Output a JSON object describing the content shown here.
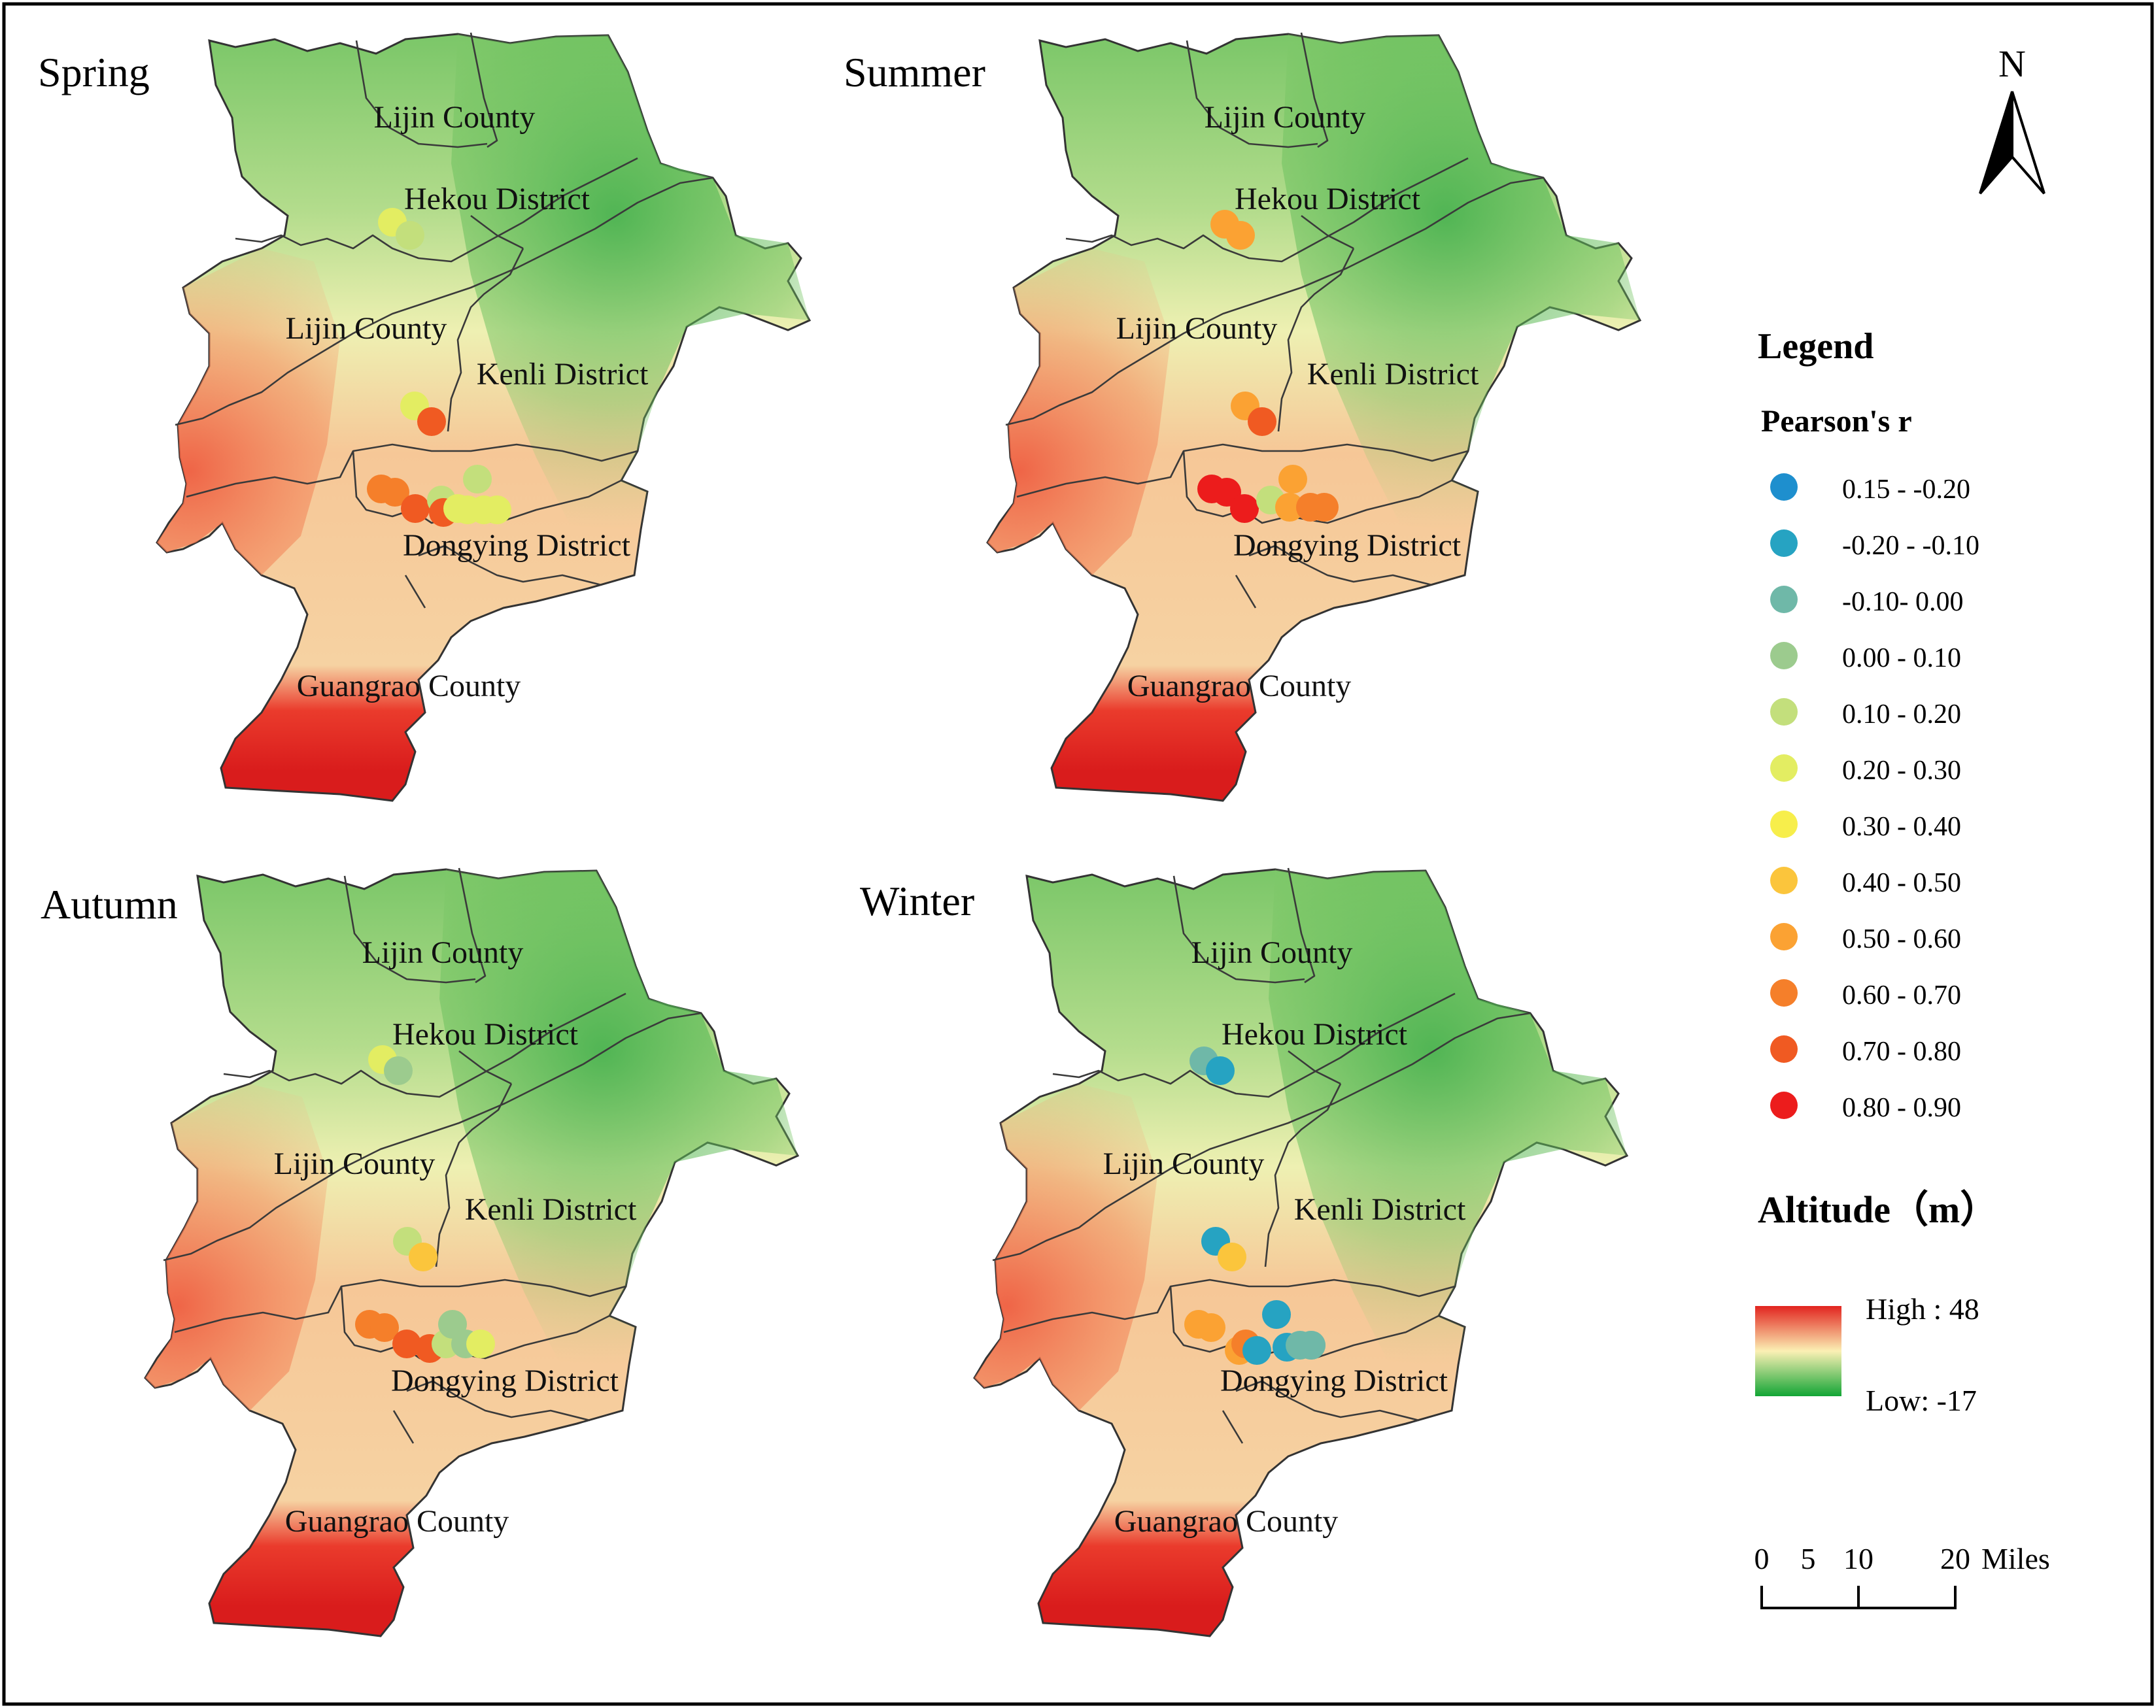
{
  "panels": [
    {
      "season": "Spring",
      "labels": [
        "Lijin County",
        "Hekou District",
        "Lijin County",
        "Kenli District",
        "Dongying District",
        "Guangrao County"
      ],
      "points": [
        {
          "cls": 5
        },
        {
          "cls": 4
        },
        {
          "cls": 5
        },
        {
          "cls": 10
        },
        {
          "cls": 9
        },
        {
          "cls": 9
        },
        {
          "cls": 10
        },
        {
          "cls": 4
        },
        {
          "cls": 10
        },
        {
          "cls": 5
        },
        {
          "cls": 4
        },
        {
          "cls": 5
        },
        {
          "cls": 5
        },
        {
          "cls": 5
        }
      ]
    },
    {
      "season": "Summer",
      "labels": [
        "Lijin County",
        "Hekou District",
        "Lijin County",
        "Kenli District",
        "Dongying District",
        "Guangrao County"
      ],
      "points": [
        {
          "cls": 8
        },
        {
          "cls": 8
        },
        {
          "cls": 8
        },
        {
          "cls": 10
        },
        {
          "cls": 11
        },
        {
          "cls": 11
        },
        {
          "cls": 11
        },
        {
          "cls": 4
        },
        {
          "cls": 8
        },
        {
          "cls": 8
        },
        {
          "cls": 9
        },
        {
          "cls": 9
        }
      ]
    },
    {
      "season": "Autumn",
      "labels": [
        "Lijin County",
        "Hekou District",
        "Lijin County",
        "Kenli District",
        "Dongying District",
        "Guangrao County"
      ],
      "points": [
        {
          "cls": 5
        },
        {
          "cls": 3
        },
        {
          "cls": 4
        },
        {
          "cls": 7
        },
        {
          "cls": 9
        },
        {
          "cls": 9
        },
        {
          "cls": 10
        },
        {
          "cls": 10
        },
        {
          "cls": 4
        },
        {
          "cls": 3
        },
        {
          "cls": 3
        },
        {
          "cls": 5
        }
      ]
    },
    {
      "season": "Winter",
      "labels": [
        "Lijin County",
        "Hekou District",
        "Lijin County",
        "Kenli District",
        "Dongying District",
        "Guangrao County"
      ],
      "points": [
        {
          "cls": 2
        },
        {
          "cls": 1
        },
        {
          "cls": 1
        },
        {
          "cls": 7
        },
        {
          "cls": 8
        },
        {
          "cls": 8
        },
        {
          "cls": 8
        },
        {
          "cls": 9
        },
        {
          "cls": 1
        },
        {
          "cls": 1
        },
        {
          "cls": 1
        },
        {
          "cls": 2
        },
        {
          "cls": 2
        },
        {
          "cls": 2
        }
      ]
    }
  ],
  "north_arrow": {
    "label": "N"
  },
  "legend": {
    "title": "Legend",
    "pearson_title": "Pearson's r",
    "classes": [
      {
        "label": "0.15 - -0.20",
        "color": "#1e8fce"
      },
      {
        "label": "-0.20 - -0.10",
        "color": "#26a3c2"
      },
      {
        "label": "-0.10- 0.00",
        "color": "#6fb8a8"
      },
      {
        "label": "0.00 - 0.10",
        "color": "#9ccb8e"
      },
      {
        "label": "0.10 - 0.20",
        "color": "#c3df7c"
      },
      {
        "label": "0.20 - 0.30",
        "color": "#e3ed62"
      },
      {
        "label": "0.30 - 0.40",
        "color": "#f7ee4b"
      },
      {
        "label": "0.40 - 0.50",
        "color": "#fbc53c"
      },
      {
        "label": "0.50 - 0.60",
        "color": "#fba233"
      },
      {
        "label": "0.60 - 0.70",
        "color": "#f57f2a"
      },
      {
        "label": "0.70 - 0.80",
        "color": "#f05a22"
      },
      {
        "label": "0.80 - 0.90",
        "color": "#ec1c1c"
      }
    ],
    "altitude_title": "Altitude（m）",
    "altitude_high": "High : 48",
    "altitude_low": "Low: -17",
    "altitude_colors": {
      "high": "#e2241f",
      "mid": "#fbf0b4",
      "low": "#12a535"
    }
  },
  "scale_bar": {
    "ticks": [
      "0",
      "5",
      "10",
      "20"
    ],
    "unit": "Miles"
  }
}
